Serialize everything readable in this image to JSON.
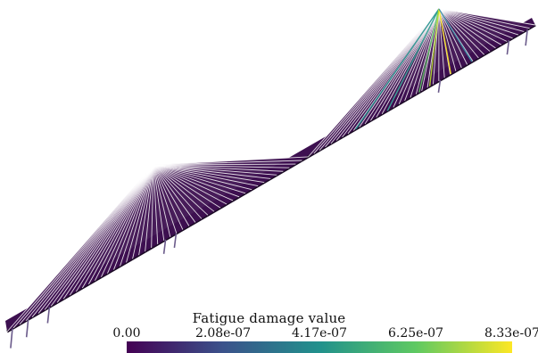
{
  "legend": {
    "title": "Fatigue damage value",
    "ticks": [
      "0.00",
      "2.08e-07",
      "4.17e-07",
      "6.25e-07",
      "8.33e-07"
    ],
    "min": 0,
    "max": 8.33e-07,
    "colors": [
      "#440154",
      "#3b528b",
      "#21918c",
      "#5ec962",
      "#fde725"
    ]
  },
  "scene": {
    "deck_color": "#3d1050",
    "deck_edge_color": "#1a0a24",
    "cable_color": "#ffffff",
    "pier_color": "#6a5a8a"
  }
}
